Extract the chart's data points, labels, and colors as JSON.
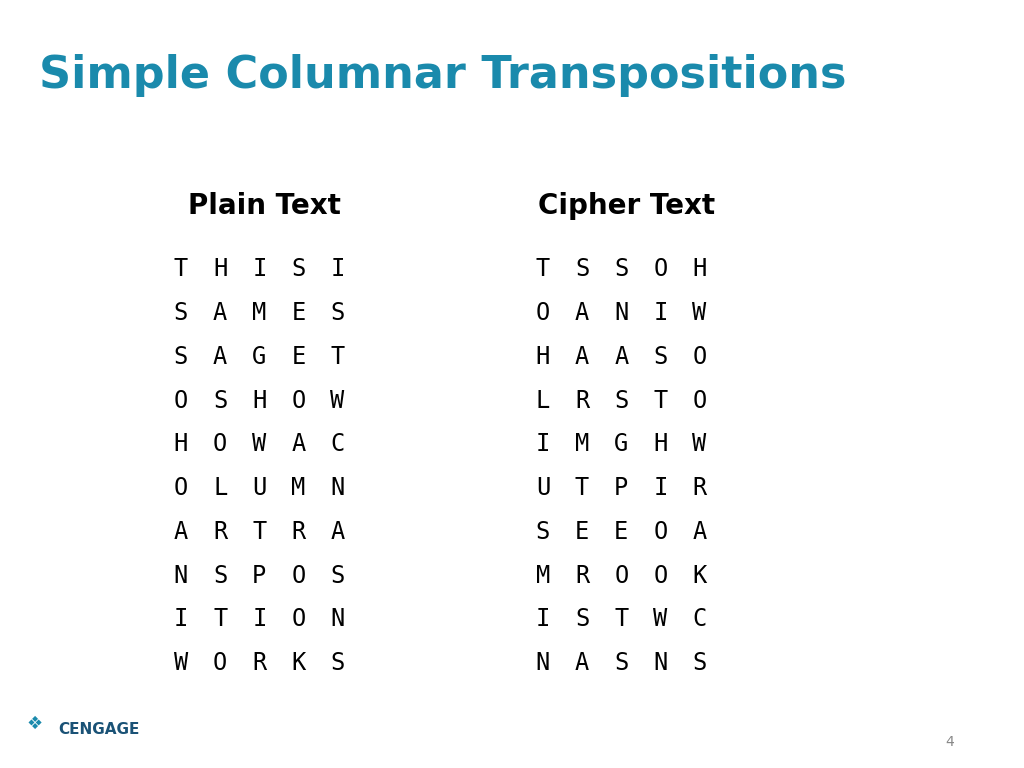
{
  "title": "Simple Columnar Transpositions",
  "title_color": "#1a8aac",
  "title_fontsize": 32,
  "background_color": "#ffffff",
  "plain_text_header": "Plain Text",
  "cipher_text_header": "Cipher Text",
  "header_fontsize": 20,
  "header_fontweight": "bold",
  "plain_rows": [
    [
      "T",
      "H",
      "I",
      "S",
      "I"
    ],
    [
      "S",
      "A",
      "M",
      "E",
      "S"
    ],
    [
      "S",
      "A",
      "G",
      "E",
      "T"
    ],
    [
      "O",
      "S",
      "H",
      "O",
      "W"
    ],
    [
      "H",
      "O",
      "W",
      "A",
      "C"
    ],
    [
      "O",
      "L",
      "U",
      "M",
      "N"
    ],
    [
      "A",
      "R",
      "T",
      "R",
      "A"
    ],
    [
      "N",
      "S",
      "P",
      "O",
      "S"
    ],
    [
      "I",
      "T",
      "I",
      "O",
      "N"
    ],
    [
      "W",
      "O",
      "R",
      "K",
      "S"
    ]
  ],
  "cipher_rows": [
    [
      "T",
      "S",
      "S",
      "O",
      "H"
    ],
    [
      "O",
      "A",
      "N",
      "I",
      "W"
    ],
    [
      "H",
      "A",
      "A",
      "S",
      "O"
    ],
    [
      "L",
      "R",
      "S",
      "T",
      "O"
    ],
    [
      "I",
      "M",
      "G",
      "H",
      "W"
    ],
    [
      "U",
      "T",
      "P",
      "I",
      "R"
    ],
    [
      "S",
      "E",
      "E",
      "O",
      "A"
    ],
    [
      "M",
      "R",
      "O",
      "O",
      "K"
    ],
    [
      "I",
      "S",
      "T",
      "W",
      "C"
    ],
    [
      "N",
      "A",
      "S",
      "N",
      "S"
    ]
  ],
  "data_fontsize": 17,
  "data_fontfamily": "monospace",
  "text_color": "#000000",
  "footer_text": "CENGAGE",
  "footer_color": "#1a5276",
  "page_number": "4",
  "page_num_color": "#888888"
}
